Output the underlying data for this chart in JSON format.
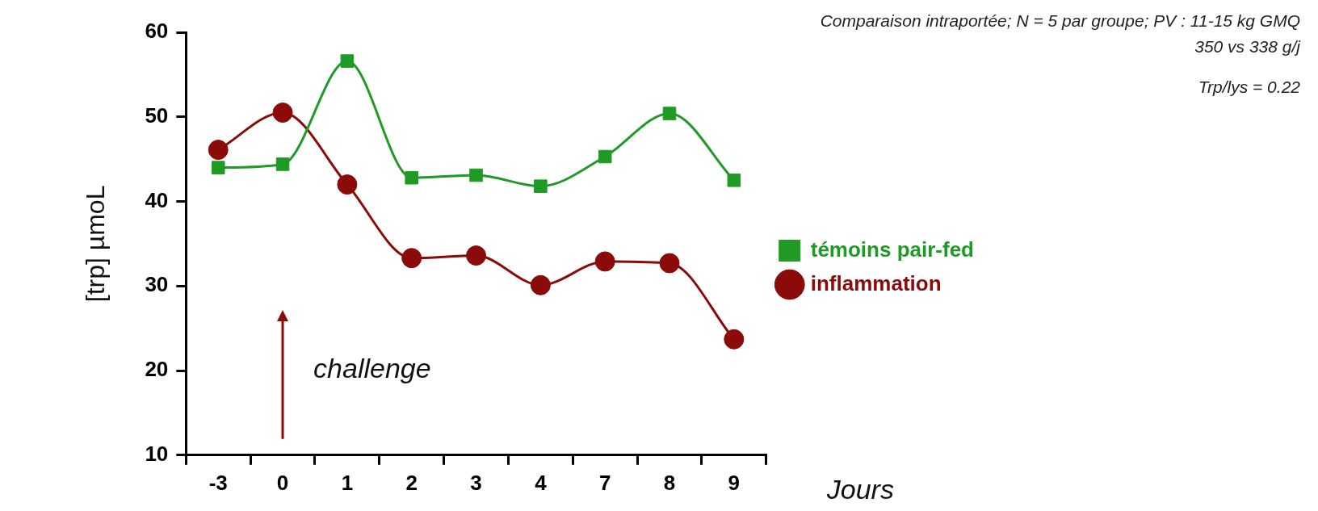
{
  "chart_data": {
    "type": "line",
    "xlabel": "Jours",
    "ylabel": "[trp] µmoL",
    "categories": [
      "-3",
      "0",
      "1",
      "2",
      "3",
      "4",
      "7",
      "8",
      "9"
    ],
    "series": [
      {
        "name": "témoins pair-fed",
        "color": "#1f9a24",
        "marker": "square",
        "values": [
          44.0,
          44.4,
          56.6,
          42.8,
          43.1,
          41.8,
          45.3,
          50.4,
          42.5
        ]
      },
      {
        "name": "inflammation",
        "color": "#8b0a0a",
        "marker": "circle",
        "values": [
          46.1,
          50.5,
          42.0,
          33.3,
          33.6,
          30.1,
          32.9,
          32.7,
          23.7
        ]
      }
    ],
    "ylim": [
      10,
      60
    ],
    "yticks": [
      10,
      20,
      30,
      40,
      50,
      60
    ],
    "grid": false,
    "legend": "right",
    "line_style": "solid",
    "annotations": [
      "Comparaison intraportée; N = 5 par groupe; PV : 11-15 kg GMQ",
      "350 vs 338 g/j",
      "Trp/lys = 0.22",
      "challenge"
    ]
  }
}
